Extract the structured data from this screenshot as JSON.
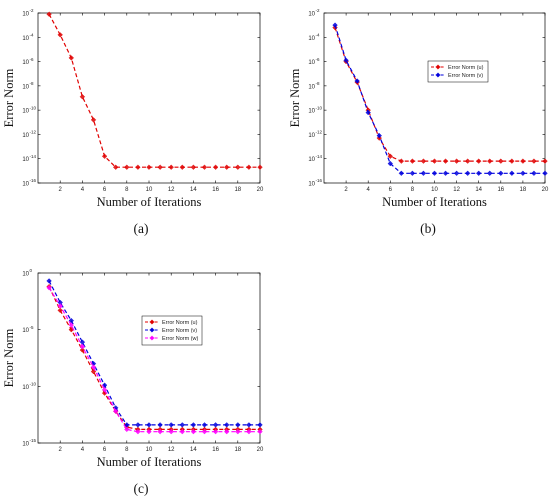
{
  "chart_data": [
    {
      "type": "line",
      "caption": "(a)",
      "xlabel": "Number of Iterations",
      "ylabel": "Error Norm",
      "xlim": [
        0,
        20
      ],
      "ylim_log10": [
        -16,
        -2
      ],
      "yscale": "log",
      "x_ticks": [
        2,
        4,
        6,
        8,
        10,
        12,
        14,
        16,
        18,
        20
      ],
      "y_tick_exponents": [
        -16,
        -14,
        -12,
        -10,
        -8,
        -6,
        -4,
        -2
      ],
      "legend": false,
      "series": [
        {
          "color": "#e00000",
          "marker": "diamond",
          "x": [
            1,
            2,
            3,
            4,
            5,
            6,
            7,
            8,
            9,
            10,
            11,
            12,
            13,
            14,
            15,
            16,
            17,
            18,
            19,
            20
          ],
          "log10_y": [
            -2.1,
            -3.8,
            -5.7,
            -8.9,
            -10.8,
            -13.8,
            -14.7,
            -14.7,
            -14.7,
            -14.7,
            -14.7,
            -14.7,
            -14.7,
            -14.7,
            -14.7,
            -14.7,
            -14.7,
            -14.7,
            -14.7,
            -14.7
          ]
        }
      ]
    },
    {
      "type": "line",
      "caption": "(b)",
      "xlabel": "Number of Iterations",
      "ylabel": "Error Norm",
      "xlim": [
        0,
        20
      ],
      "ylim_log10": [
        -16,
        -2
      ],
      "yscale": "log",
      "x_ticks": [
        2,
        4,
        6,
        8,
        10,
        12,
        14,
        16,
        18,
        20
      ],
      "y_tick_exponents": [
        -16,
        -14,
        -12,
        -10,
        -8,
        -6,
        -4,
        -2
      ],
      "legend": "right",
      "series": [
        {
          "name": "Error Norm (u)",
          "color": "#e00000",
          "marker": "diamond",
          "x": [
            1,
            2,
            3,
            4,
            5,
            6,
            7,
            8,
            9,
            10,
            11,
            12,
            13,
            14,
            15,
            16,
            17,
            18,
            19,
            20
          ],
          "log10_y": [
            -3.2,
            -6.0,
            -7.7,
            -10.0,
            -12.3,
            -13.8,
            -14.2,
            -14.2,
            -14.2,
            -14.2,
            -14.2,
            -14.2,
            -14.2,
            -14.2,
            -14.2,
            -14.2,
            -14.2,
            -14.2,
            -14.2,
            -14.2
          ]
        },
        {
          "name": "Error Norm (v)",
          "color": "#0000dd",
          "marker": "diamond",
          "x": [
            1,
            2,
            3,
            4,
            5,
            6,
            7,
            8,
            9,
            10,
            11,
            12,
            13,
            14,
            15,
            16,
            17,
            18,
            19,
            20
          ],
          "log10_y": [
            -3.0,
            -5.9,
            -7.6,
            -10.2,
            -12.1,
            -14.4,
            -15.2,
            -15.2,
            -15.2,
            -15.2,
            -15.2,
            -15.2,
            -15.2,
            -15.2,
            -15.2,
            -15.2,
            -15.2,
            -15.2,
            -15.2,
            -15.2
          ]
        }
      ]
    },
    {
      "type": "line",
      "caption": "(c)",
      "xlabel": "Number of Iterations",
      "ylabel": "Error Norm",
      "xlim": [
        0,
        20
      ],
      "ylim_log10": [
        -15,
        0
      ],
      "yscale": "log",
      "x_ticks": [
        2,
        4,
        6,
        8,
        10,
        12,
        14,
        16,
        18,
        20
      ],
      "y_tick_exponents": [
        -15,
        -10,
        -5,
        0
      ],
      "legend": "right",
      "series": [
        {
          "name": "Error Norm (u)",
          "color": "#e00000",
          "marker": "diamond",
          "x": [
            1,
            2,
            3,
            4,
            5,
            6,
            7,
            8,
            9,
            10,
            11,
            12,
            13,
            14,
            15,
            16,
            17,
            18,
            19,
            20
          ],
          "log10_y": [
            -1.2,
            -3.3,
            -5.0,
            -6.8,
            -8.7,
            -10.6,
            -12.2,
            -13.6,
            -13.8,
            -13.8,
            -13.8,
            -13.8,
            -13.8,
            -13.8,
            -13.8,
            -13.8,
            -13.8,
            -13.8,
            -13.8,
            -13.8
          ]
        },
        {
          "name": "Error Norm (v)",
          "color": "#0000dd",
          "marker": "diamond",
          "x": [
            1,
            2,
            3,
            4,
            5,
            6,
            7,
            8,
            9,
            10,
            11,
            12,
            13,
            14,
            15,
            16,
            17,
            18,
            19,
            20
          ],
          "log10_y": [
            -0.7,
            -2.6,
            -4.2,
            -6.1,
            -8.0,
            -9.9,
            -11.9,
            -13.4,
            -13.4,
            -13.4,
            -13.4,
            -13.4,
            -13.4,
            -13.4,
            -13.4,
            -13.4,
            -13.4,
            -13.4,
            -13.4,
            -13.4
          ]
        },
        {
          "name": "Error Norm (w)",
          "color": "#ff00ff",
          "marker": "diamond",
          "x": [
            1,
            2,
            3,
            4,
            5,
            6,
            7,
            8,
            9,
            10,
            11,
            12,
            13,
            14,
            15,
            16,
            17,
            18,
            19,
            20
          ],
          "log10_y": [
            -1.3,
            -2.9,
            -4.6,
            -6.5,
            -8.3,
            -10.3,
            -12.2,
            -13.8,
            -14.0,
            -14.0,
            -14.0,
            -14.0,
            -14.0,
            -14.0,
            -14.0,
            -14.0,
            -14.0,
            -14.0,
            -14.0,
            -14.0
          ]
        }
      ]
    }
  ]
}
